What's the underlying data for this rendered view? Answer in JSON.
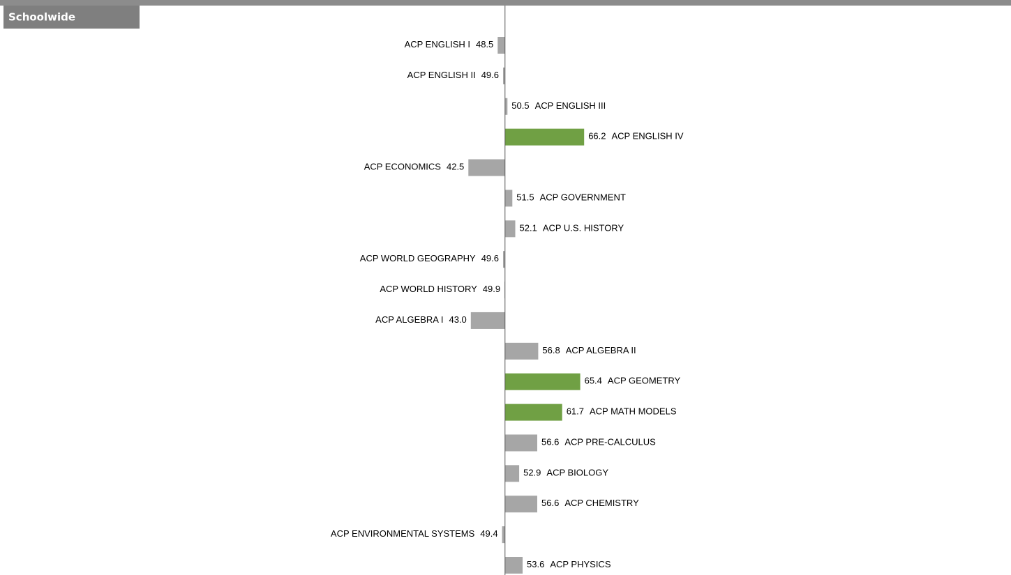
{
  "header": {
    "title": "Schoolwide"
  },
  "chart_data": {
    "type": "diverging-bar",
    "categories": [
      "ACP ENGLISH I",
      "ACP ENGLISH II",
      "ACP ENGLISH III",
      "ACP ENGLISH IV",
      "ACP ECONOMICS",
      "ACP GOVERNMENT",
      "ACP U.S. HISTORY",
      "ACP WORLD GEOGRAPHY",
      "ACP WORLD HISTORY",
      "ACP ALGEBRA I",
      "ACP ALGEBRA II",
      "ACP GEOMETRY",
      "ACP MATH MODELS",
      "ACP PRE-CALCULUS",
      "ACP BIOLOGY",
      "ACP CHEMISTRY",
      "ACP ENVIRONMENTAL SYSTEMS",
      "ACP PHYSICS"
    ],
    "values": [
      48.5,
      49.6,
      50.5,
      66.2,
      42.5,
      51.5,
      52.1,
      49.6,
      49.9,
      43.0,
      56.8,
      65.4,
      61.7,
      56.6,
      52.9,
      56.6,
      49.4,
      53.6
    ],
    "value_labels": [
      "48.5",
      "49.6",
      "50.5",
      "66.2",
      "42.5",
      "51.5",
      "52.1",
      "49.6",
      "49.9",
      "43.0",
      "56.8",
      "65.4",
      "61.7",
      "56.6",
      "52.9",
      "56.6",
      "49.4",
      "53.6"
    ],
    "colors": [
      "#a6a6a6",
      "#a6a6a6",
      "#a6a6a6",
      "#70a044",
      "#a6a6a6",
      "#a6a6a6",
      "#a6a6a6",
      "#a6a6a6",
      "#a6a6a6",
      "#a6a6a6",
      "#a6a6a6",
      "#70a044",
      "#70a044",
      "#a6a6a6",
      "#a6a6a6",
      "#a6a6a6",
      "#a6a6a6",
      "#a6a6a6"
    ],
    "baseline": 50,
    "xlim": [
      -53.4,
      153.6
    ]
  }
}
